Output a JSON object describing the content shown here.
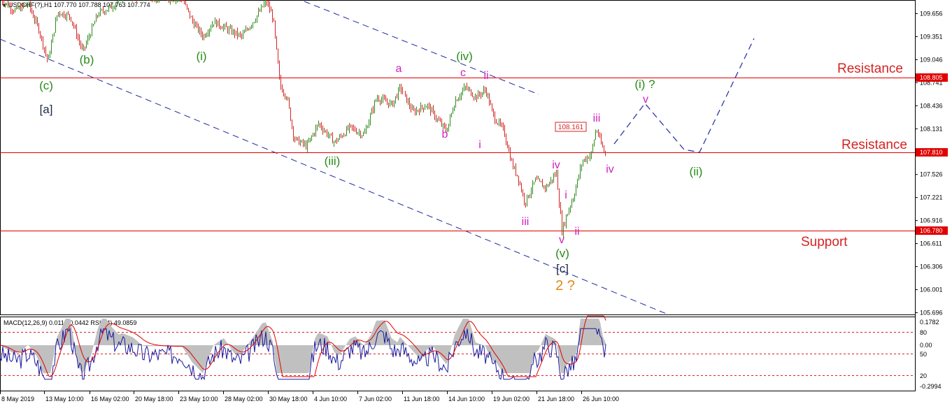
{
  "header": {
    "symbol": "USDCHF(?),H1",
    "ohlc": "107.770 107.788 107.763 107.774",
    "indicator_legend": "MACD(12,26,9) 0.0115 0.0442  RSI(14) 49.0859"
  },
  "colors": {
    "bull": "#2e8b1f",
    "bear": "#d42424",
    "hline": "#e00000",
    "channel": "#1e2a9e",
    "projection": "#1e2a9e",
    "green_label": "#2a8a1a",
    "magenta_label": "#d020c0",
    "orange_label": "#e08a10",
    "dark_label": "#1e2a4a",
    "macd_hist": "#c0c0c0",
    "rsi_line": "#1a1a9e",
    "signal_line": "#e00000"
  },
  "chart_data": {
    "type": "candlestick",
    "ylim": [
      105.7,
      109.8
    ],
    "y_ticks": [
      "109.656",
      "109.351",
      "109.046",
      "108.741",
      "108.436",
      "108.131",
      "107.526",
      "107.221",
      "106.916",
      "106.611",
      "106.306",
      "106.001",
      "105.696"
    ],
    "x_ticks": [
      "8 May 2019",
      "13 May 10:00",
      "16 May 02:00",
      "20 May 18:00",
      "23 May 10:00",
      "28 May 02:00",
      "30 May 18:00",
      "4 Jun 10:00",
      "7 Jun 02:00",
      "11 Jun 18:00",
      "14 Jun 10:00",
      "19 Jun 02:00",
      "21 Jun 18:00",
      "26 Jun 10:00"
    ],
    "price_path": [
      [
        0,
        109.85
      ],
      [
        20,
        109.7
      ],
      [
        40,
        109.78
      ],
      [
        55,
        109.45
      ],
      [
        68,
        109.02
      ],
      [
        82,
        109.68
      ],
      [
        100,
        109.62
      ],
      [
        118,
        109.15
      ],
      [
        140,
        109.66
      ],
      [
        160,
        109.75
      ],
      [
        175,
        109.9
      ],
      [
        260,
        109.85
      ],
      [
        275,
        109.55
      ],
      [
        290,
        109.35
      ],
      [
        305,
        109.55
      ],
      [
        325,
        109.45
      ],
      [
        345,
        109.35
      ],
      [
        365,
        109.6
      ],
      [
        380,
        109.82
      ],
      [
        390,
        109.6
      ],
      [
        400,
        108.7
      ],
      [
        410,
        108.55
      ],
      [
        420,
        108.0
      ],
      [
        438,
        107.9
      ],
      [
        455,
        108.2
      ],
      [
        478,
        107.95
      ],
      [
        500,
        108.15
      ],
      [
        520,
        108.05
      ],
      [
        538,
        108.55
      ],
      [
        560,
        108.45
      ],
      [
        572,
        108.68
      ],
      [
        590,
        108.35
      ],
      [
        610,
        108.45
      ],
      [
        625,
        108.25
      ],
      [
        638,
        108.1
      ],
      [
        650,
        108.5
      ],
      [
        665,
        108.68
      ],
      [
        680,
        108.55
      ],
      [
        694,
        108.65
      ],
      [
        705,
        108.3
      ],
      [
        720,
        108.1
      ],
      [
        732,
        107.65
      ],
      [
        740,
        107.5
      ],
      [
        750,
        107.15
      ],
      [
        765,
        107.45
      ],
      [
        780,
        107.35
      ],
      [
        795,
        107.55
      ],
      [
        803,
        106.78
      ],
      [
        812,
        107.05
      ],
      [
        820,
        107.25
      ],
      [
        832,
        107.7
      ],
      [
        845,
        107.8
      ],
      [
        852,
        108.14
      ],
      [
        860,
        107.9
      ],
      [
        866,
        107.77
      ]
    ],
    "resistance_levels": [
      "108.805",
      "107.810"
    ],
    "support_level": "106.780",
    "boxed_price_label": "108.161",
    "horizontal_labels": [
      "Resistance",
      "Resistance",
      "Support"
    ],
    "wave_labels": [
      {
        "text": "(c)",
        "color": "green"
      },
      {
        "text": "[a]",
        "color": "dark"
      },
      {
        "text": "(b)",
        "color": "green"
      },
      {
        "text": "(i)",
        "color": "green"
      },
      {
        "text": "(iii)",
        "color": "green"
      },
      {
        "text": "(iv)",
        "color": "green"
      },
      {
        "text": "a",
        "color": "magenta"
      },
      {
        "text": "b",
        "color": "magenta"
      },
      {
        "text": "c",
        "color": "magenta"
      },
      {
        "text": "i",
        "color": "magenta"
      },
      {
        "text": "ii",
        "color": "magenta"
      },
      {
        "text": "iii",
        "color": "magenta"
      },
      {
        "text": "iv",
        "color": "magenta"
      },
      {
        "text": "i",
        "color": "magenta"
      },
      {
        "text": "ii",
        "color": "magenta"
      },
      {
        "text": "v",
        "color": "magenta"
      },
      {
        "text": "(v)",
        "color": "green"
      },
      {
        "text": "[c]",
        "color": "dark"
      },
      {
        "text": "2 ?",
        "color": "orange"
      },
      {
        "text": "iii",
        "color": "magenta"
      },
      {
        "text": "iv",
        "color": "magenta"
      },
      {
        "text": "(i) ?",
        "color": "green"
      },
      {
        "text": "v",
        "color": "magenta"
      },
      {
        "text": "(ii)",
        "color": "green"
      }
    ],
    "indicator": {
      "macd_ticks": [
        "0.1782",
        "0.00",
        "-0.2994"
      ],
      "rsi_ticks": [
        "80",
        "50",
        "20"
      ]
    }
  }
}
